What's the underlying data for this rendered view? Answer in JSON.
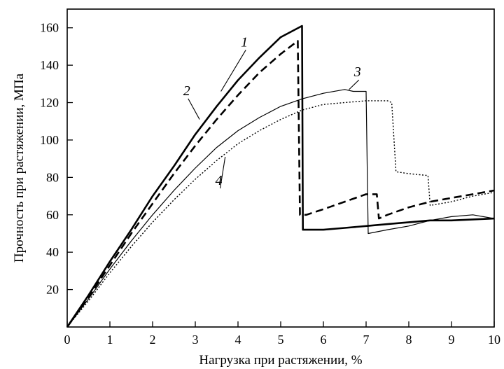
{
  "chart_data": {
    "type": "line",
    "xlabel": "Нагрузка при растяжении, %",
    "ylabel": "Прочность при растяжении, МПа",
    "xlim": [
      0,
      10
    ],
    "ylim": [
      0,
      170
    ],
    "xticks": [
      0,
      1,
      2,
      3,
      4,
      5,
      6,
      7,
      8,
      9,
      10
    ],
    "yticks": [
      20,
      40,
      60,
      80,
      100,
      120,
      140,
      160
    ],
    "grid": false,
    "legend": "none",
    "series": [
      {
        "name": "1",
        "style": "solid-thick",
        "color": "#000000",
        "points": [
          [
            0,
            0
          ],
          [
            0.5,
            17
          ],
          [
            1,
            35
          ],
          [
            1.5,
            52
          ],
          [
            2,
            70
          ],
          [
            2.5,
            86
          ],
          [
            3,
            103
          ],
          [
            3.5,
            118
          ],
          [
            4,
            132
          ],
          [
            4.5,
            144
          ],
          [
            5,
            155
          ],
          [
            5.5,
            161
          ],
          [
            5.52,
            52
          ],
          [
            6,
            52
          ],
          [
            6.5,
            53
          ],
          [
            7,
            54
          ],
          [
            7.5,
            55
          ],
          [
            8,
            56
          ],
          [
            8.5,
            57
          ],
          [
            9,
            57
          ],
          [
            9.5,
            57.5
          ],
          [
            10,
            58
          ]
        ]
      },
      {
        "name": "2",
        "style": "dashed-thick",
        "color": "#000000",
        "points": [
          [
            0,
            0
          ],
          [
            0.5,
            16
          ],
          [
            1,
            33
          ],
          [
            1.5,
            50
          ],
          [
            2,
            66
          ],
          [
            2.5,
            82
          ],
          [
            3,
            97
          ],
          [
            3.5,
            111
          ],
          [
            4,
            124
          ],
          [
            4.5,
            136
          ],
          [
            5,
            146
          ],
          [
            5.4,
            153
          ],
          [
            5.45,
            60
          ],
          [
            5.6,
            60
          ],
          [
            6,
            63
          ],
          [
            6.5,
            67
          ],
          [
            7,
            71
          ],
          [
            7.25,
            71
          ],
          [
            7.3,
            58
          ],
          [
            7.5,
            60
          ],
          [
            8,
            64
          ],
          [
            8.5,
            67
          ],
          [
            9,
            69
          ],
          [
            9.5,
            71
          ],
          [
            10,
            73
          ]
        ]
      },
      {
        "name": "3",
        "style": "solid-thin",
        "color": "#000000",
        "points": [
          [
            0,
            0
          ],
          [
            0.5,
            15
          ],
          [
            1,
            31
          ],
          [
            1.5,
            46
          ],
          [
            2,
            60
          ],
          [
            2.5,
            73
          ],
          [
            3,
            85
          ],
          [
            3.5,
            96
          ],
          [
            4,
            105
          ],
          [
            4.5,
            112
          ],
          [
            5,
            118
          ],
          [
            5.5,
            122
          ],
          [
            6,
            125
          ],
          [
            6.5,
            127
          ],
          [
            6.7,
            126
          ],
          [
            7,
            126
          ],
          [
            7.05,
            50
          ],
          [
            7.5,
            52
          ],
          [
            8,
            54
          ],
          [
            8.5,
            57
          ],
          [
            9,
            59
          ],
          [
            9.5,
            60
          ],
          [
            10,
            58
          ]
        ]
      },
      {
        "name": "4",
        "style": "dotted",
        "color": "#000000",
        "points": [
          [
            0,
            0
          ],
          [
            0.5,
            14
          ],
          [
            1,
            29
          ],
          [
            1.5,
            43
          ],
          [
            2,
            56
          ],
          [
            2.5,
            68
          ],
          [
            3,
            79
          ],
          [
            3.5,
            89
          ],
          [
            4,
            98
          ],
          [
            4.5,
            105
          ],
          [
            5,
            111
          ],
          [
            5.5,
            116
          ],
          [
            6,
            119
          ],
          [
            6.5,
            120
          ],
          [
            7,
            121
          ],
          [
            7.5,
            121
          ],
          [
            7.6,
            120
          ],
          [
            7.7,
            83
          ],
          [
            8,
            82
          ],
          [
            8.45,
            81
          ],
          [
            8.5,
            65
          ],
          [
            9,
            67
          ],
          [
            9.5,
            70
          ],
          [
            10,
            72
          ]
        ]
      }
    ],
    "annotations": [
      {
        "text": "1",
        "series": "1",
        "label_at": [
          4.15,
          150
        ],
        "point_at": [
          3.6,
          126
        ]
      },
      {
        "text": "2",
        "series": "2",
        "label_at": [
          2.8,
          124
        ],
        "point_at": [
          3.1,
          111
        ]
      },
      {
        "text": "3",
        "series": "3",
        "label_at": [
          6.8,
          134
        ],
        "point_at": [
          6.6,
          127
        ]
      },
      {
        "text": "4",
        "series": "4",
        "label_at": [
          3.55,
          76
        ],
        "point_at": [
          3.7,
          91
        ]
      }
    ]
  }
}
